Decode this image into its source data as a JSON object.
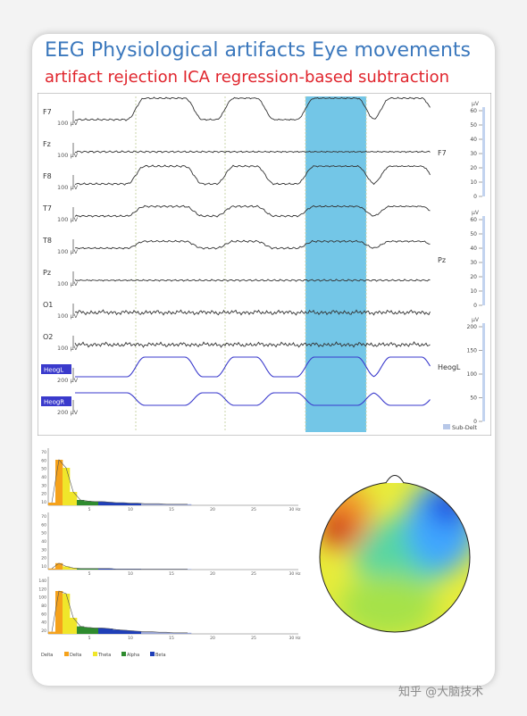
{
  "title_line1": "EEG Physiological artifacts Eye movements",
  "title_line2": "artifact rejection ICA regression-based subtraction",
  "colors": {
    "title1": "#3b78bd",
    "title2": "#e0242c",
    "trace": "#333333",
    "eog_trace": "#3a3acc",
    "highlight": "#5bbce3",
    "delta": "#f5a21b",
    "theta": "#f0e62a",
    "alpha": "#2e8b2e",
    "beta": "#1f3fb8"
  },
  "channels": [
    {
      "label": "F7",
      "scale": "100 µV",
      "type": "eye",
      "amp": 1.0
    },
    {
      "label": "Fz",
      "scale": "100 µV",
      "type": "flat",
      "amp": 0.08
    },
    {
      "label": "F8",
      "scale": "100 µV",
      "type": "eye_inv",
      "amp": 0.9
    },
    {
      "label": "T7",
      "scale": "100 µV",
      "type": "eye",
      "amp": 0.45
    },
    {
      "label": "T8",
      "scale": "100 µV",
      "type": "eye_inv",
      "amp": 0.35
    },
    {
      "label": "Pz",
      "scale": "100 µV",
      "type": "flat",
      "amp": 0.1
    },
    {
      "label": "O1",
      "scale": "100 µV",
      "type": "noise",
      "amp": 0.2
    },
    {
      "label": "O2",
      "scale": "100 µV",
      "type": "noise",
      "amp": 0.2
    },
    {
      "label": "HeogL",
      "scale": "200 µV",
      "type": "eog",
      "amp": 1.0,
      "highlight_label": true
    },
    {
      "label": "HeogR",
      "scale": "200 µV",
      "type": "eog_inv",
      "amp": 1.0,
      "highlight_label": true
    }
  ],
  "right_labels": [
    "F7",
    "Pz",
    "HeogL"
  ],
  "scales": [
    {
      "unit": "µV",
      "ticks": [
        "60",
        "50",
        "40",
        "30",
        "20",
        "10",
        "0"
      ]
    },
    {
      "unit": "µV",
      "ticks": [
        "60",
        "50",
        "40",
        "30",
        "20",
        "10",
        "0"
      ]
    },
    {
      "unit": "µV",
      "ticks": [
        "200",
        "150",
        "100",
        "50",
        "0"
      ]
    }
  ],
  "legend_label": "Sub-Delt",
  "psd_panels": [
    {
      "yticks": [
        "70",
        "60",
        "50",
        "40",
        "30",
        "20",
        "10"
      ],
      "values": [
        0.05,
        0.85,
        0.7,
        0.25,
        0.1,
        0.08,
        0.07,
        0.07,
        0.06,
        0.05,
        0.05,
        0.04,
        0.04,
        0.03,
        0.03,
        0.03,
        0.02,
        0.02,
        0.02,
        0.02
      ]
    },
    {
      "yticks": [
        "70",
        "60",
        "50",
        "40",
        "30",
        "20",
        "10"
      ],
      "values": [
        0.02,
        0.12,
        0.06,
        0.03,
        0.02,
        0.02,
        0.02,
        0.02,
        0.02,
        0.01,
        0.01,
        0.01,
        0.01,
        0.01,
        0.01,
        0.01,
        0.01,
        0.01,
        0.01,
        0.01
      ]
    },
    {
      "yticks": [
        "140",
        "120",
        "100",
        "80",
        "60",
        "40",
        "20"
      ],
      "values": [
        0.04,
        0.8,
        0.75,
        0.3,
        0.14,
        0.12,
        0.11,
        0.11,
        0.1,
        0.08,
        0.07,
        0.06,
        0.05,
        0.04,
        0.04,
        0.03,
        0.03,
        0.02,
        0.02,
        0.02
      ]
    }
  ],
  "psd_xticks": [
    "5",
    "10",
    "15",
    "20",
    "25",
    "30 Hz"
  ],
  "band_legend": [
    "Delta",
    "Delta",
    "Theta",
    "Alpha",
    "Beta"
  ],
  "watermark": "知乎 @大脑技术"
}
